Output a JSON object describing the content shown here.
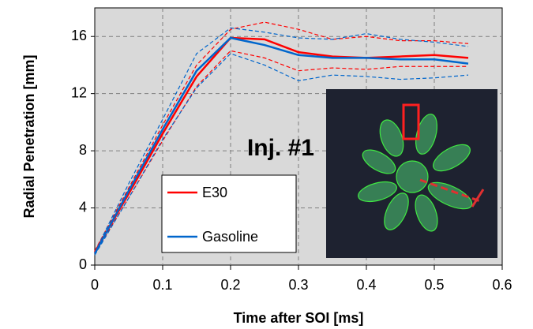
{
  "chart_data": {
    "type": "line",
    "x_label": "Time after SOI [ms]",
    "y_label": "Radial Penetration [mm]",
    "annotation": "Inj. #1",
    "x": [
      0,
      0.05,
      0.1,
      0.15,
      0.2,
      0.25,
      0.3,
      0.35,
      0.4,
      0.45,
      0.5,
      0.55
    ],
    "series": [
      {
        "name": "E30",
        "color": "#ff0000",
        "values": [
          0.9,
          5.0,
          9.2,
          13.2,
          15.9,
          15.8,
          14.9,
          14.6,
          14.5,
          14.6,
          14.7,
          14.5
        ],
        "upper": [
          1.0,
          5.4,
          9.8,
          14.0,
          16.5,
          17.0,
          16.5,
          15.8,
          16.0,
          15.7,
          15.7,
          15.5
        ],
        "lower": [
          0.8,
          4.7,
          8.7,
          12.5,
          15.0,
          14.5,
          13.6,
          13.8,
          13.7,
          13.9,
          13.9,
          13.9
        ]
      },
      {
        "name": "Gasoline",
        "color": "#0066cc",
        "values": [
          0.8,
          5.2,
          9.5,
          13.6,
          15.9,
          15.4,
          14.7,
          14.5,
          14.5,
          14.4,
          14.4,
          14.1
        ],
        "upper": [
          0.9,
          5.7,
          10.2,
          14.8,
          16.6,
          16.3,
          15.9,
          15.8,
          16.2,
          15.8,
          15.6,
          15.3
        ],
        "lower": [
          0.7,
          4.7,
          8.8,
          12.4,
          14.8,
          14.0,
          12.9,
          13.3,
          13.2,
          13.0,
          13.1,
          13.3
        ]
      }
    ],
    "xlim": [
      0,
      0.6
    ],
    "xticks": [
      0,
      0.1,
      0.2,
      0.3,
      0.4,
      0.5,
      0.6
    ],
    "ylim": [
      0,
      18
    ],
    "yticks": [
      0,
      4,
      8,
      12,
      16
    ],
    "grid": true,
    "background": "#d9d9d9"
  }
}
